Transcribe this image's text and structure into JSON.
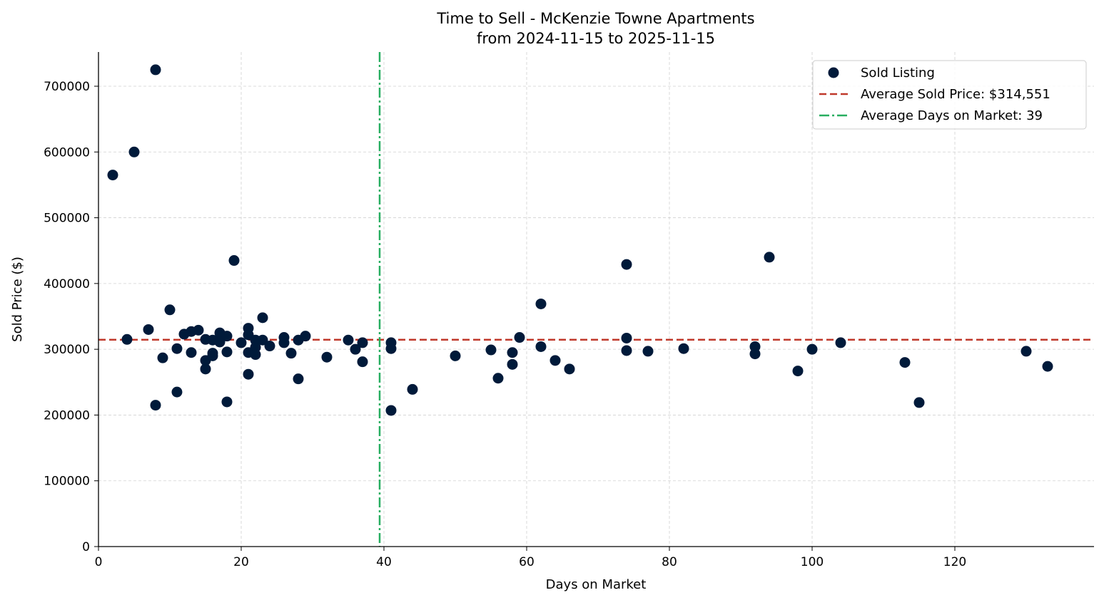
{
  "chart_data": {
    "type": "scatter",
    "title": "Time to Sell - McKenzie Towne Apartments",
    "subtitle": "from 2024-11-15 to 2025-11-15",
    "xlabel": "Days on Market",
    "ylabel": "Sold Price ($)",
    "xlim": [
      0,
      139.5
    ],
    "ylim": [
      0,
      752000
    ],
    "xticks": [
      0,
      20,
      40,
      60,
      80,
      100,
      120
    ],
    "yticks": [
      0,
      100000,
      200000,
      300000,
      400000,
      500000,
      600000,
      700000
    ],
    "grid": true,
    "legend_placement": "top-right",
    "colors": {
      "points": "#001a3a",
      "avg_price": "#c0392b",
      "avg_days": "#27ae60",
      "grid": "#d0d0d0"
    },
    "legend": [
      {
        "label": "Sold Listing",
        "kind": "marker"
      },
      {
        "label": "Average Sold Price: $314,551",
        "kind": "dashed"
      },
      {
        "label": "Average Days on Market: 39",
        "kind": "dashdot"
      }
    ],
    "average_price": 314551,
    "average_days": 39.4,
    "series": [
      {
        "name": "Sold Listing",
        "points": [
          [
            2,
            565000
          ],
          [
            5,
            600000
          ],
          [
            8,
            725000
          ],
          [
            4,
            315000
          ],
          [
            7,
            330000
          ],
          [
            9,
            287000
          ],
          [
            8,
            215000
          ],
          [
            10,
            360000
          ],
          [
            11,
            301000
          ],
          [
            11,
            235000
          ],
          [
            12,
            323000
          ],
          [
            13,
            327000
          ],
          [
            13,
            295000
          ],
          [
            14,
            329000
          ],
          [
            15,
            315000
          ],
          [
            15,
            283000
          ],
          [
            15,
            270000
          ],
          [
            16,
            314000
          ],
          [
            16,
            294000
          ],
          [
            16,
            290000
          ],
          [
            17,
            325000
          ],
          [
            17,
            311000
          ],
          [
            18,
            320000
          ],
          [
            18,
            296000
          ],
          [
            18,
            220000
          ],
          [
            19,
            435000
          ],
          [
            20,
            310000
          ],
          [
            21,
            332000
          ],
          [
            21,
            322000
          ],
          [
            21,
            295000
          ],
          [
            21,
            262000
          ],
          [
            22,
            314000
          ],
          [
            22,
            303000
          ],
          [
            22,
            292000
          ],
          [
            23,
            348000
          ],
          [
            23,
            314000
          ],
          [
            24,
            305000
          ],
          [
            26,
            318000
          ],
          [
            26,
            310000
          ],
          [
            27,
            294000
          ],
          [
            28,
            314000
          ],
          [
            28,
            255000
          ],
          [
            29,
            320000
          ],
          [
            32,
            288000
          ],
          [
            35,
            314000
          ],
          [
            36,
            300000
          ],
          [
            37,
            310000
          ],
          [
            37,
            281000
          ],
          [
            41,
            310000
          ],
          [
            41,
            301000
          ],
          [
            41,
            207000
          ],
          [
            44,
            239000
          ],
          [
            50,
            290000
          ],
          [
            55,
            299000
          ],
          [
            56,
            256000
          ],
          [
            58,
            295000
          ],
          [
            58,
            277000
          ],
          [
            59,
            318000
          ],
          [
            62,
            369000
          ],
          [
            62,
            304000
          ],
          [
            64,
            283000
          ],
          [
            66,
            270000
          ],
          [
            74,
            429000
          ],
          [
            74,
            317000
          ],
          [
            74,
            298000
          ],
          [
            77,
            297000
          ],
          [
            82,
            301000
          ],
          [
            92,
            304000
          ],
          [
            92,
            293000
          ],
          [
            94,
            440000
          ],
          [
            98,
            267000
          ],
          [
            100,
            300000
          ],
          [
            104,
            310000
          ],
          [
            113,
            280000
          ],
          [
            115,
            219000
          ],
          [
            130,
            297000
          ],
          [
            133,
            274000
          ]
        ]
      }
    ]
  }
}
